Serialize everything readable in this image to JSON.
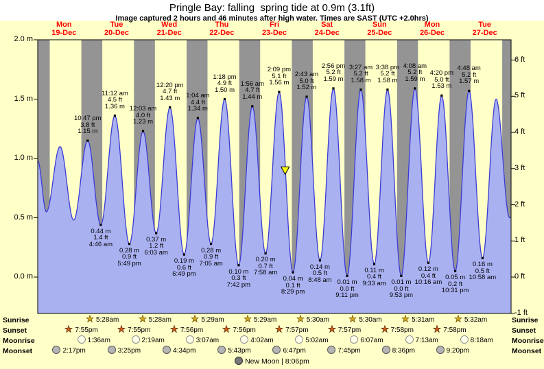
{
  "title": "Pringle Bay: falling  spring tide at 0.9m (3.1ft)",
  "subtitle": "Image captured 2 hours and 46 minutes after high water. Times are SAST (UTC +2.0hrs)",
  "colors": {
    "page_bg": "#ffffc8",
    "day_bg": "#ffffc8",
    "night_bg": "#949494",
    "tide_fill": "#a9b1f1",
    "tide_stroke": "#3b3bd6",
    "day_label": "#ff0000",
    "marker_fill": "#ffff00",
    "sunrise_star": "#d4aa1e",
    "sunset_star": "#cc5f1e",
    "moonrise_fill": "#ffffe9",
    "moonset_fill": "#b5b5b5",
    "new_moon_fill": "#777777"
  },
  "days": [
    {
      "name": "Mon",
      "date": "19-Dec"
    },
    {
      "name": "Tue",
      "date": "20-Dec"
    },
    {
      "name": "Wed",
      "date": "21-Dec"
    },
    {
      "name": "Thu",
      "date": "22-Dec"
    },
    {
      "name": "Fri",
      "date": "23-Dec"
    },
    {
      "name": "Sat",
      "date": "24-Dec"
    },
    {
      "name": "Sun",
      "date": "25-Dec"
    },
    {
      "name": "Mon",
      "date": "26-Dec"
    },
    {
      "name": "Tue",
      "date": "27-Dec"
    }
  ],
  "y_axis_left": {
    "labels": [
      "2.0 m",
      "1.5 m",
      "1.0 m",
      "0.5 m",
      "0.0 m"
    ],
    "values_m": [
      2.0,
      1.5,
      1.0,
      0.5,
      0.0
    ]
  },
  "y_axis_right": {
    "labels": [
      "6 ft",
      "5 ft",
      "4 ft",
      "3 ft",
      "2 ft",
      "1 ft",
      "0 ft",
      "-1 ft"
    ],
    "values_ft": [
      6,
      5,
      4,
      3,
      2,
      1,
      0,
      -1
    ]
  },
  "chart_data": {
    "type": "area",
    "x_span": {
      "start_day": "Mon 19-Dec",
      "days": 9
    },
    "ylim_m": [
      -0.305,
      2.0
    ],
    "current_marker": {
      "day": 4,
      "time_24": "16:55",
      "height_m": 0.9
    },
    "extremes": [
      {
        "day": 0,
        "time": "10:47 pm",
        "time_24": "22:47",
        "m": "1.15",
        "ft": "3.8",
        "type": "high"
      },
      {
        "day": 1,
        "time": "4:46 am",
        "time_24": "04:46",
        "m": "0.44",
        "ft": "1.4",
        "type": "low"
      },
      {
        "day": 1,
        "time": "11:12 am",
        "time_24": "11:12",
        "m": "1.36",
        "ft": "4.5",
        "type": "high"
      },
      {
        "day": 1,
        "time": "5:49 pm",
        "time_24": "17:49",
        "m": "0.28",
        "ft": "0.9",
        "type": "low"
      },
      {
        "day": 2,
        "time": "12:03 am",
        "time_24": "00:03",
        "m": "1.23",
        "ft": "4.0",
        "type": "high"
      },
      {
        "day": 2,
        "time": "6:03 am",
        "time_24": "06:03",
        "m": "0.37",
        "ft": "1.2",
        "type": "low"
      },
      {
        "day": 2,
        "time": "12:20 pm",
        "time_24": "12:20",
        "m": "1.43",
        "ft": "4.7",
        "type": "high"
      },
      {
        "day": 2,
        "time": "6:49 pm",
        "time_24": "18:49",
        "m": "0.19",
        "ft": "0.6",
        "type": "low"
      },
      {
        "day": 3,
        "time": "1:04 am",
        "time_24": "01:04",
        "m": "1.34",
        "ft": "4.4",
        "type": "high"
      },
      {
        "day": 3,
        "time": "7:05 am",
        "time_24": "07:05",
        "m": "0.28",
        "ft": "0.9",
        "type": "low"
      },
      {
        "day": 3,
        "time": "1:18 pm",
        "time_24": "13:18",
        "m": "1.50",
        "ft": "4.9",
        "type": "high"
      },
      {
        "day": 3,
        "time": "7:42 pm",
        "time_24": "19:42",
        "m": "0.10",
        "ft": "0.3",
        "type": "low"
      },
      {
        "day": 4,
        "time": "1:56 am",
        "time_24": "01:56",
        "m": "1.44",
        "ft": "4.7",
        "type": "high"
      },
      {
        "day": 4,
        "time": "7:58 am",
        "time_24": "07:58",
        "m": "0.20",
        "ft": "0.7",
        "type": "low"
      },
      {
        "day": 4,
        "time": "2:09 pm",
        "time_24": "14:09",
        "m": "1.56",
        "ft": "5.1",
        "type": "high"
      },
      {
        "day": 4,
        "time": "8:29 pm",
        "time_24": "20:29",
        "m": "0.04",
        "ft": "0.1",
        "type": "low"
      },
      {
        "day": 5,
        "time": "2:43 am",
        "time_24": "02:43",
        "m": "1.52",
        "ft": "5.0",
        "type": "high"
      },
      {
        "day": 5,
        "time": "8:48 am",
        "time_24": "08:48",
        "m": "0.14",
        "ft": "0.5",
        "type": "low"
      },
      {
        "day": 5,
        "time": "2:56 pm",
        "time_24": "14:56",
        "m": "1.59",
        "ft": "5.2",
        "type": "high"
      },
      {
        "day": 5,
        "time": "9:11 pm",
        "time_24": "21:11",
        "m": "0.01",
        "ft": "0.0",
        "type": "low"
      },
      {
        "day": 6,
        "time": "3:27 am",
        "time_24": "03:27",
        "m": "1.58",
        "ft": "5.2",
        "type": "high"
      },
      {
        "day": 6,
        "time": "9:33 am",
        "time_24": "09:33",
        "m": "0.11",
        "ft": "0.4",
        "type": "low"
      },
      {
        "day": 6,
        "time": "3:38 pm",
        "time_24": "15:38",
        "m": "1.58",
        "ft": "5.2",
        "type": "high"
      },
      {
        "day": 6,
        "time": "9:53 pm",
        "time_24": "21:53",
        "m": "0.01",
        "ft": "0.0",
        "type": "low"
      },
      {
        "day": 7,
        "time": "4:08 am",
        "time_24": "04:08",
        "m": "1.59",
        "ft": "5.2",
        "type": "high"
      },
      {
        "day": 7,
        "time": "10:16 am",
        "time_24": "10:16",
        "m": "0.12",
        "ft": "0.4",
        "type": "low"
      },
      {
        "day": 7,
        "time": "4:20 pm",
        "time_24": "16:20",
        "m": "1.53",
        "ft": "5.0",
        "type": "high"
      },
      {
        "day": 7,
        "time": "10:31 pm",
        "time_24": "22:31",
        "m": "0.05",
        "ft": "0.2",
        "type": "low"
      },
      {
        "day": 8,
        "time": "4:48 am",
        "time_24": "04:48",
        "m": "1.57",
        "ft": "5.2",
        "type": "high"
      },
      {
        "day": 8,
        "time": "10:58 am",
        "time_24": "10:58",
        "m": "0.16",
        "ft": "0.5",
        "type": "low"
      }
    ],
    "edge_curve": {
      "start_height_m": 0.98,
      "points_before": [
        {
          "day": 0,
          "time_24": "03:55",
          "height_m": 0.55
        },
        {
          "day": 0,
          "time_24": "10:10",
          "height_m": 1.1
        },
        {
          "day": 0,
          "time_24": "16:25",
          "height_m": 0.48
        }
      ],
      "points_after": [
        {
          "day": 8,
          "time_24": "17:10",
          "height_m": 1.5
        },
        {
          "day": 8,
          "time_24": "23:20",
          "height_m": 0.5
        }
      ]
    }
  },
  "almanac": {
    "row_labels": [
      "Sunrise",
      "Sunset",
      "Moonrise",
      "Moonset"
    ],
    "sunrise": [
      {
        "day": 1,
        "time": "5:28am",
        "time_24": "05:28"
      },
      {
        "day": 2,
        "time": "5:28am",
        "time_24": "05:28"
      },
      {
        "day": 3,
        "time": "5:29am",
        "time_24": "05:29"
      },
      {
        "day": 4,
        "time": "5:29am",
        "time_24": "05:29"
      },
      {
        "day": 5,
        "time": "5:30am",
        "time_24": "05:30"
      },
      {
        "day": 6,
        "time": "5:30am",
        "time_24": "05:30"
      },
      {
        "day": 7,
        "time": "5:31am",
        "time_24": "05:31"
      },
      {
        "day": 8,
        "time": "5:32am",
        "time_24": "05:32"
      }
    ],
    "sunset": [
      {
        "day": 0,
        "time": "7:55pm",
        "time_24": "19:55"
      },
      {
        "day": 1,
        "time": "7:55pm",
        "time_24": "19:55"
      },
      {
        "day": 2,
        "time": "7:56pm",
        "time_24": "19:56"
      },
      {
        "day": 3,
        "time": "7:56pm",
        "time_24": "19:56"
      },
      {
        "day": 4,
        "time": "7:57pm",
        "time_24": "19:57"
      },
      {
        "day": 5,
        "time": "7:57pm",
        "time_24": "19:57"
      },
      {
        "day": 6,
        "time": "7:58pm",
        "time_24": "19:58"
      },
      {
        "day": 7,
        "time": "7:58pm",
        "time_24": "19:58"
      }
    ],
    "moonrise": [
      {
        "day": 1,
        "time": "1:36am",
        "time_24": "01:36"
      },
      {
        "day": 2,
        "time": "2:19am",
        "time_24": "02:19"
      },
      {
        "day": 3,
        "time": "3:07am",
        "time_24": "03:07"
      },
      {
        "day": 4,
        "time": "4:02am",
        "time_24": "04:02"
      },
      {
        "day": 5,
        "time": "5:02am",
        "time_24": "05:02"
      },
      {
        "day": 6,
        "time": "6:07am",
        "time_24": "06:07"
      },
      {
        "day": 7,
        "time": "7:13am",
        "time_24": "07:13"
      },
      {
        "day": 8,
        "time": "8:18am",
        "time_24": "08:18"
      }
    ],
    "moonset": [
      {
        "day": 0,
        "time": "2:17pm",
        "time_24": "14:17"
      },
      {
        "day": 1,
        "time": "3:25pm",
        "time_24": "15:25"
      },
      {
        "day": 2,
        "time": "4:34pm",
        "time_24": "16:34"
      },
      {
        "day": 3,
        "time": "5:43pm",
        "time_24": "17:43"
      },
      {
        "day": 4,
        "time": "6:47pm",
        "time_24": "18:47"
      },
      {
        "day": 5,
        "time": "7:45pm",
        "time_24": "19:45"
      },
      {
        "day": 6,
        "time": "8:36pm",
        "time_24": "20:36"
      },
      {
        "day": 7,
        "time": "9:20pm",
        "time_24": "21:20"
      }
    ],
    "new_moon_label": "New Moon | 8:06pm"
  }
}
